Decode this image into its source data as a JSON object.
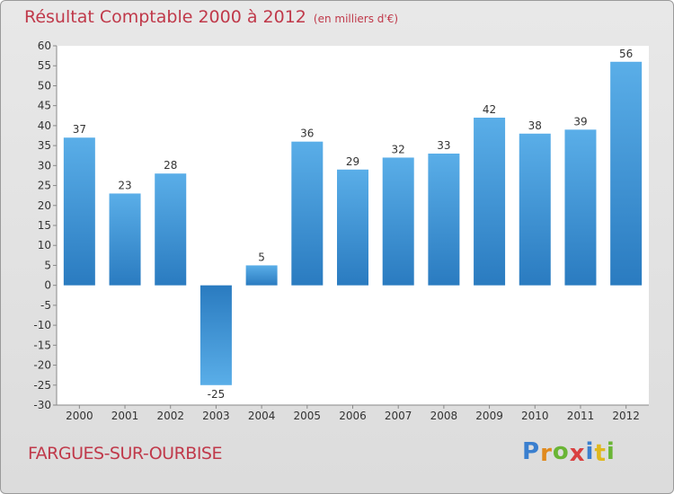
{
  "chart_data": {
    "type": "bar",
    "title": "Résultat Comptable 2000 à 2012",
    "subtitle": "(en milliers d'€)",
    "categories": [
      "2000",
      "2001",
      "2002",
      "2003",
      "2004",
      "2005",
      "2006",
      "2007",
      "2008",
      "2009",
      "2010",
      "2011",
      "2012"
    ],
    "values": [
      37,
      23,
      28,
      -25,
      5,
      36,
      29,
      32,
      33,
      42,
      38,
      39,
      56
    ],
    "ylim": [
      -30,
      60
    ],
    "yticks": [
      60,
      55,
      50,
      45,
      40,
      35,
      30,
      25,
      20,
      15,
      10,
      5,
      0,
      -5,
      -10,
      -15,
      -20,
      -25,
      -30
    ],
    "xlabel": "",
    "ylabel": "",
    "grid": false,
    "bar_color_top": "#5aaee8",
    "bar_color_bottom": "#2a7bc0"
  },
  "footer": {
    "commune": "FARGUES-SUR-OURBISE",
    "brand": "Proxiti",
    "brand_letters": [
      {
        "ch": "P",
        "color": "#3a7fcf"
      },
      {
        "ch": "r",
        "color": "#e08a1e"
      },
      {
        "ch": "o",
        "color": "#6ab535"
      },
      {
        "ch": "x",
        "color": "#d94040"
      },
      {
        "ch": "i",
        "color": "#3a7fcf"
      },
      {
        "ch": "t",
        "color": "#e0b81e"
      },
      {
        "ch": "i",
        "color": "#6ab535"
      }
    ]
  }
}
